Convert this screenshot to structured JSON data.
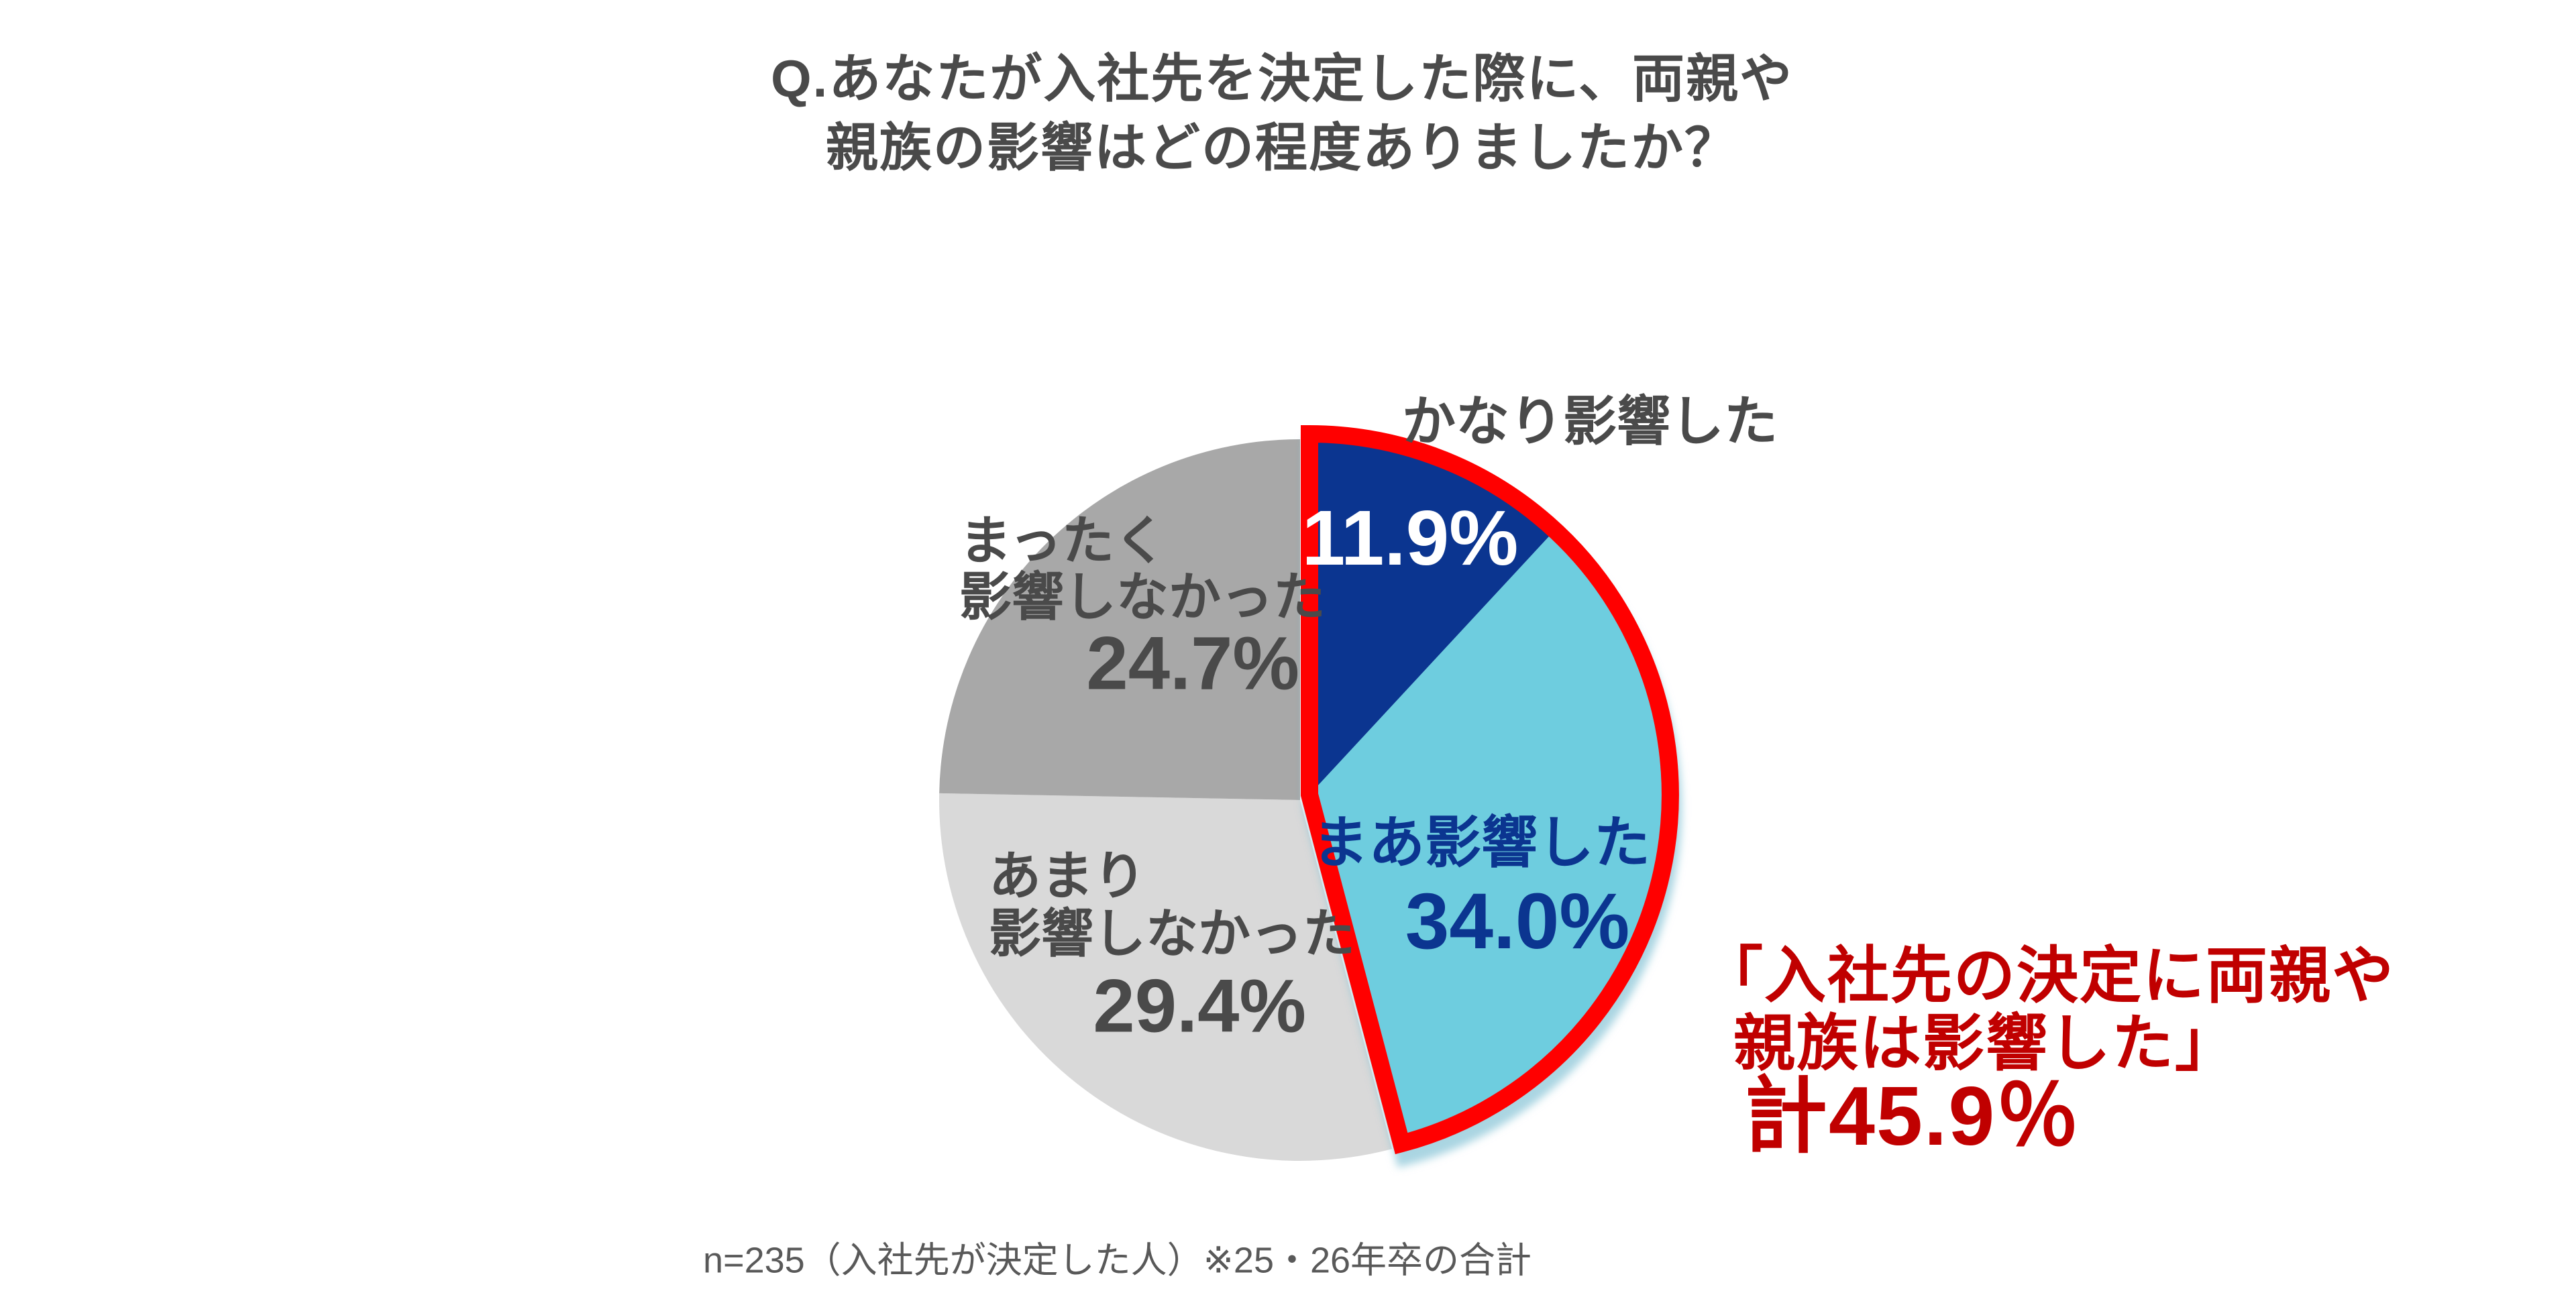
{
  "title": {
    "line1": "Q.あなたが入社先を決定した際に、両親や",
    "line2": "親族の影響はどの程度ありましたか？"
  },
  "chart_data": {
    "type": "pie",
    "title": "Q.あなたが入社先を決定した際に、両親や親族の影響はどの程度ありましたか？",
    "start_angle_deg": 0,
    "direction": "clockwise",
    "slices": [
      {
        "label": "かなり影響した",
        "label_lines": [
          "かなり影響した"
        ],
        "value_pct": 11.9,
        "display": "11.9%",
        "color": "#0b3590",
        "highlighted": true
      },
      {
        "label": "まあ影響した",
        "label_lines": [
          "まあ影響した"
        ],
        "value_pct": 34.0,
        "display": "34.0%",
        "color": "#6ecddf",
        "highlighted": true
      },
      {
        "label": "あまり影響しなかった",
        "label_lines": [
          "あまり",
          "影響しなかった"
        ],
        "value_pct": 29.4,
        "display": "29.4%",
        "color": "#d9d9d9",
        "highlighted": false
      },
      {
        "label": "まったく影響しなかった",
        "label_lines": [
          "まったく",
          "影響しなかった"
        ],
        "value_pct": 24.7,
        "display": "24.7%",
        "color": "#a8a8a8",
        "highlighted": false
      }
    ],
    "highlight_outline_color": "#ff0000",
    "highlight_total_pct": 45.9,
    "legend_position": "labels-on-chart",
    "grid": false
  },
  "annotation": {
    "line1": "「入社先の決定に両親や",
    "line2": "親族は影響した」",
    "line3": "計45.9％",
    "color": "#c00000"
  },
  "footnote": "n=235（入社先が決定した人）※25・26年卒の合計",
  "theme": {
    "text-dark": "#4a4a4a",
    "value-blue": "#0b3590",
    "value-white": "#ffffff",
    "annotation-red": "#c00000",
    "footnote-gray": "#595959",
    "background": "#ffffff"
  }
}
